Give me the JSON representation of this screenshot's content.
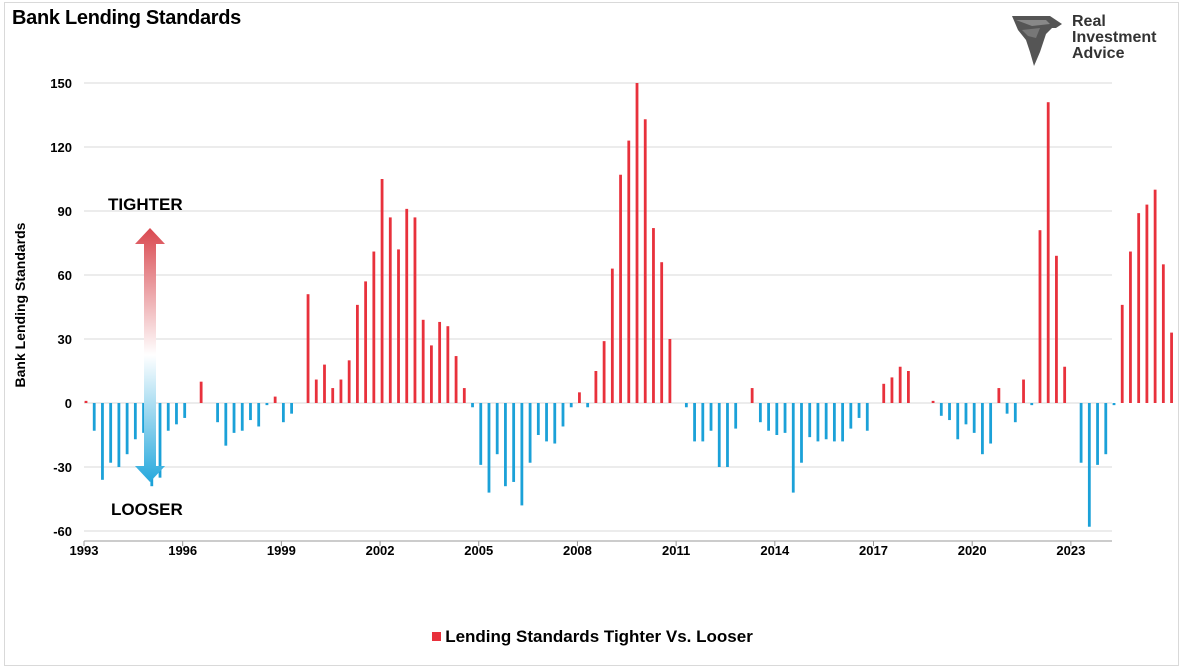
{
  "chart_data": {
    "type": "bar",
    "title": "Bank Lending Standards",
    "ylabel": "Bank Lending Standards",
    "ylim": [
      -60,
      150
    ],
    "yticks": [
      -60,
      -30,
      0,
      30,
      60,
      90,
      120,
      150
    ],
    "xlim": [
      1993.0,
      2024.25
    ],
    "xticks": [
      1993,
      1996,
      1999,
      2002,
      2005,
      2008,
      2011,
      2014,
      2017,
      2020,
      2023
    ],
    "grid": "horizontal",
    "legend": "bottom-center",
    "series": [
      {
        "name": "Lending Standards Tighter Vs. Looser",
        "color_positive": "#e8313c",
        "color_negative": "#1ba1d8",
        "x_start": 1993.0,
        "step": 0.25,
        "values": [
          1,
          -13,
          -36,
          -28,
          -30,
          -24,
          -17,
          -14,
          -39,
          -35,
          -13,
          -10,
          -7,
          0,
          10,
          0,
          -9,
          -20,
          -14,
          -13,
          -8,
          -11,
          -1,
          3,
          -9,
          -5,
          0,
          51,
          11,
          18,
          7,
          11,
          20,
          46,
          57,
          71,
          105,
          87,
          72,
          91,
          87,
          39,
          27,
          38,
          36,
          22,
          7,
          -2,
          -29,
          -42,
          -24,
          -39,
          -37,
          -48,
          -28,
          -15,
          -18,
          -19,
          -11,
          -2,
          5,
          -2,
          15,
          29,
          63,
          107,
          123,
          150,
          133,
          82,
          66,
          30,
          0,
          -2,
          -18,
          -18,
          -13,
          -30,
          -30,
          -12,
          0,
          7,
          -9,
          -13,
          -15,
          -14,
          -42,
          -28,
          -16,
          -18,
          -17,
          -18,
          -18,
          -12,
          -7,
          -13,
          0,
          9,
          12,
          17,
          15,
          0,
          0,
          1,
          -6,
          -8,
          -17,
          -10,
          -14,
          -24,
          -19,
          7,
          -5,
          -9,
          11,
          -1,
          81,
          141,
          69,
          17,
          0,
          -28,
          -58,
          -29,
          -24,
          -1,
          46,
          71,
          89,
          93,
          100,
          65,
          33
        ]
      }
    ],
    "annotations": {
      "tighter": "TIGHTER",
      "looser": "LOOSER"
    }
  },
  "logo": {
    "line1": "Real",
    "line2": "Investment",
    "line3": "Advice",
    "icon": "eagle-head-icon"
  }
}
